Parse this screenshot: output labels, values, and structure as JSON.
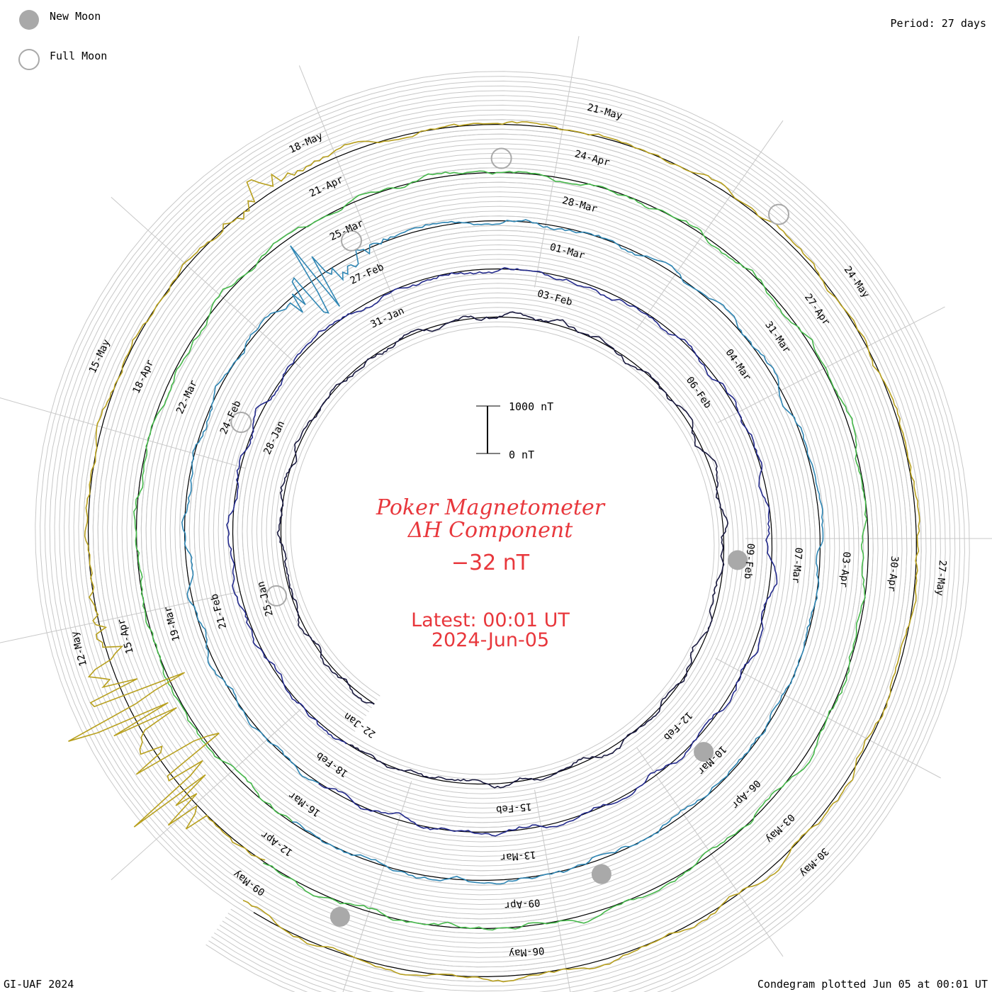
{
  "header": {
    "legend_new_moon": "New Moon",
    "legend_full_moon": "Full Moon",
    "period": "Period: 27 days"
  },
  "footer": {
    "left": "GI-UAF 2024",
    "right": "Condegram plotted Jun 05 at 00:01 UT"
  },
  "center": {
    "title_line1": "Poker Magnetometer",
    "title_line2": "ΔH Component",
    "current_value": "−32 nT",
    "latest_line1": "Latest: 00:01 UT",
    "latest_line2": "2024-Jun-05",
    "scale_top": "1000 nT",
    "scale_bottom": "0 nT",
    "text_color": "#e8373c"
  },
  "chart_data": {
    "type": "line",
    "title": "Poker Magnetometer ΔH Component",
    "layout": "condegram-spiral",
    "period_days": 27,
    "start_date": "2024-01-22",
    "end_date": "2024-06-05",
    "scale": {
      "bar_value_nT": 1000,
      "base_value_nT": 0
    },
    "latest_value_nT": -32,
    "cycles": [
      {
        "start": "22-Jan",
        "color": "#1a1a40"
      },
      {
        "start": "18-Feb",
        "color": "#232a8c"
      },
      {
        "start": "16-Mar",
        "color": "#2f86b4"
      },
      {
        "start": "12-Apr",
        "color": "#45b84a"
      },
      {
        "start": "09-May",
        "color": "#b8a01e"
      },
      {
        "start": "05-Jun",
        "color": "#c0451a"
      }
    ],
    "date_labels": [
      "22-Jan",
      "25-Jan",
      "28-Jan",
      "31-Jan",
      "03-Feb",
      "06-Feb",
      "09-Feb",
      "12-Feb",
      "15-Feb",
      "18-Feb",
      "21-Feb",
      "24-Feb",
      "27-Feb",
      "01-Mar",
      "04-Mar",
      "07-Mar",
      "10-Mar",
      "13-Mar",
      "16-Mar",
      "19-Mar",
      "22-Mar",
      "25-Mar",
      "28-Mar",
      "31-Mar",
      "03-Apr",
      "06-Apr",
      "09-Apr",
      "12-Apr",
      "15-Apr",
      "18-Apr",
      "21-Apr",
      "24-Apr",
      "27-Apr",
      "30-Apr",
      "03-May",
      "06-May",
      "09-May",
      "12-May",
      "15-May",
      "18-May",
      "21-May",
      "24-May",
      "27-May",
      "30-May"
    ],
    "new_moons": [
      "2024-02-09",
      "2024-03-10",
      "2024-04-08",
      "2024-05-08"
    ],
    "full_moons": [
      "2024-01-25",
      "2024-02-24",
      "2024-03-25",
      "2024-04-23",
      "2024-05-23"
    ],
    "disturbances": [
      {
        "date": "2024-03-24",
        "peak_nT": 900
      },
      {
        "date": "2024-05-10",
        "peak_nT": 2000
      },
      {
        "date": "2024-05-11",
        "peak_nT": 1800
      },
      {
        "date": "2024-05-17",
        "peak_nT": 400
      }
    ]
  }
}
